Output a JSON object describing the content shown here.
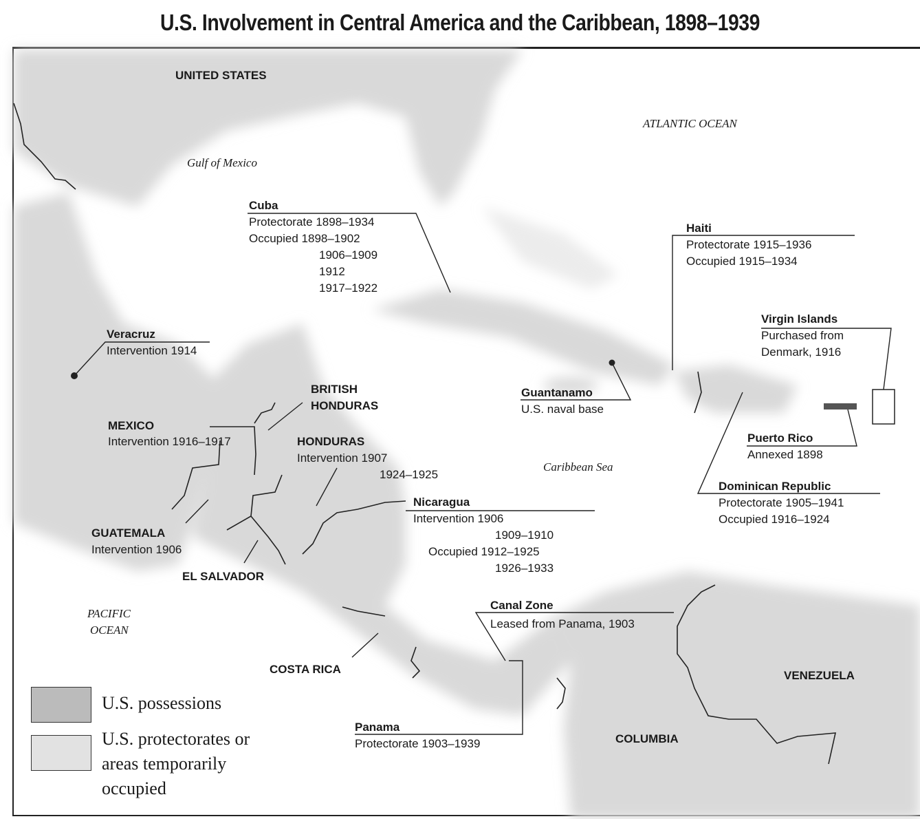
{
  "title": "U.S. Involvement in Central America and the Caribbean, 1898–1939",
  "colors": {
    "land": "#d9d9d9",
    "possession": "#9a9a9a",
    "water": "#ffffff",
    "lines": "#222222"
  },
  "regions": {
    "united_states": "UNITED STATES",
    "mexico": "MEXICO",
    "british_honduras_1": "BRITISH",
    "british_honduras_2": "HONDURAS",
    "el_salvador": "EL SALVADOR",
    "costa_rica": "COSTA RICA",
    "venezuela": "VENEZUELA",
    "columbia": "COLUMBIA"
  },
  "waters": {
    "gulf": "Gulf of Mexico",
    "atlantic": "ATLANTIC OCEAN",
    "caribbean": "Caribbean Sea",
    "pacific_1": "PACIFIC",
    "pacific_2": "OCEAN"
  },
  "callouts": {
    "cuba": {
      "name": "Cuba",
      "lines": [
        "Protectorate 1898–1934",
        "Occupied 1898–1902",
        "1906–1909",
        "1912",
        "1917–1922"
      ]
    },
    "haiti": {
      "name": "Haiti",
      "lines": [
        "Protectorate 1915–1936",
        "Occupied 1915–1934"
      ]
    },
    "virgin_islands": {
      "name": "Virgin Islands",
      "lines": [
        "Purchased from",
        "Denmark, 1916"
      ]
    },
    "veracruz": {
      "name": "Veracruz",
      "lines": [
        "Intervention 1914"
      ]
    },
    "mexico": {
      "lines": [
        "Intervention 1916–1917"
      ]
    },
    "guantanamo": {
      "name": "Guantanamo",
      "lines": [
        "U.S. naval base"
      ]
    },
    "puerto_rico": {
      "name": "Puerto Rico",
      "lines": [
        "Annexed 1898"
      ]
    },
    "honduras": {
      "name": "HONDURAS",
      "lines": [
        "Intervention 1907",
        "1924–1925"
      ]
    },
    "dominican_republic": {
      "name": "Dominican Republic",
      "lines": [
        "Protectorate 1905–1941",
        "Occupied 1916–1924"
      ]
    },
    "nicaragua": {
      "name": "Nicaragua",
      "lines": [
        "Intervention 1906",
        "1909–1910",
        "Occupied 1912–1925",
        "1926–1933"
      ]
    },
    "guatemala": {
      "name": "GUATEMALA",
      "lines": [
        "Intervention 1906"
      ]
    },
    "canal_zone": {
      "name": "Canal Zone",
      "lines": [
        "Leased from Panama, 1903"
      ]
    },
    "panama": {
      "name": "Panama",
      "lines": [
        "Protectorate 1903–1939"
      ]
    }
  },
  "legend": {
    "possessions": "U.S. possessions",
    "protectorates_1": "U.S. protectorates or",
    "protectorates_2": "areas temporarily",
    "protectorates_3": "occupied"
  }
}
